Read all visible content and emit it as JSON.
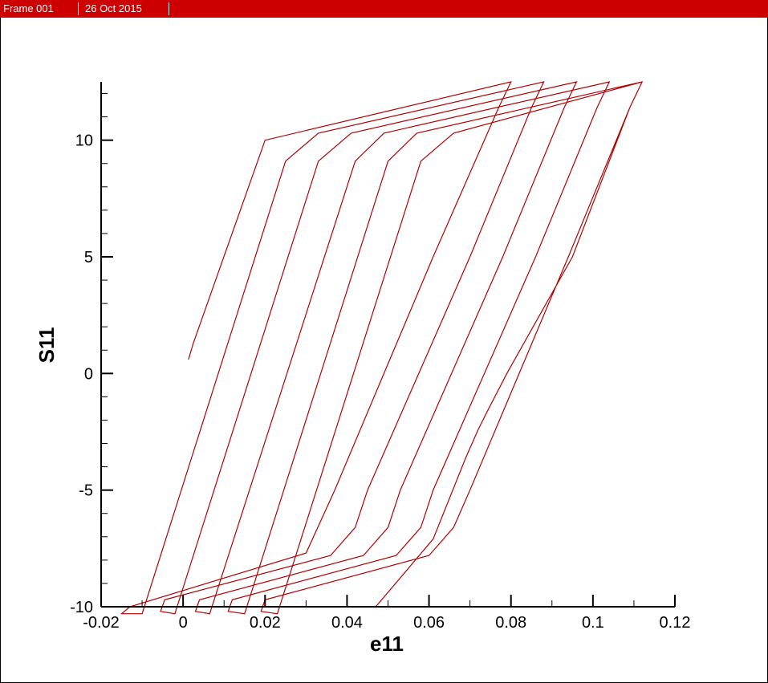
{
  "header": {
    "frame_label": "Frame 001",
    "date_label": "26 Oct 2015",
    "background_color": "#cc0000"
  },
  "chart_data": {
    "type": "line",
    "title": "",
    "xlabel": "e11",
    "ylabel": "S11",
    "xlim": [
      -0.02,
      0.12
    ],
    "ylim": [
      -10,
      12.5
    ],
    "xticks": [
      -0.02,
      0,
      0.02,
      0.04,
      0.06,
      0.08,
      0.1,
      0.12
    ],
    "xtick_labels": [
      "-0.02",
      "0",
      "0.02",
      "0.04",
      "0.06",
      "0.08",
      "0.1",
      "0.12"
    ],
    "yticks": [
      -10,
      -5,
      0,
      5,
      10
    ],
    "ytick_labels": [
      "-10",
      "-5",
      "0",
      "5",
      "10"
    ],
    "grid": false,
    "line_color": "#b00000",
    "series": [
      {
        "values": [
          [
            0.0013,
            0.6
          ],
          [
            0.0025,
            1.3
          ],
          [
            0.02,
            10.0
          ],
          [
            0.08,
            12.5
          ],
          [
            0.077,
            11.4
          ],
          [
            0.061,
            5.0
          ],
          [
            0.037,
            -5.0
          ],
          [
            0.03,
            -7.7
          ],
          [
            -0.013,
            -10.0
          ],
          [
            -0.015,
            -10.3
          ],
          [
            -0.01,
            -10.3
          ],
          [
            0.025,
            9.1
          ],
          [
            0.033,
            10.3
          ],
          [
            0.088,
            12.5
          ],
          [
            0.085,
            11.4
          ],
          [
            0.07,
            5.0
          ],
          [
            0.045,
            -5.0
          ],
          [
            0.042,
            -6.6
          ],
          [
            0.036,
            -7.8
          ],
          [
            -0.0045,
            -9.7
          ],
          [
            -0.0055,
            -10.2
          ],
          [
            -0.002,
            -10.3
          ],
          [
            0.033,
            9.1
          ],
          [
            0.041,
            10.3
          ],
          [
            0.096,
            12.5
          ],
          [
            0.093,
            11.4
          ],
          [
            0.078,
            5.0
          ],
          [
            0.053,
            -5.0
          ],
          [
            0.05,
            -6.6
          ],
          [
            0.044,
            -7.8
          ],
          [
            0.004,
            -9.7
          ],
          [
            0.003,
            -10.2
          ],
          [
            0.0065,
            -10.3
          ],
          [
            0.042,
            9.1
          ],
          [
            0.049,
            10.3
          ],
          [
            0.104,
            12.5
          ],
          [
            0.101,
            11.4
          ],
          [
            0.086,
            5.0
          ],
          [
            0.061,
            -5.0
          ],
          [
            0.058,
            -6.6
          ],
          [
            0.052,
            -7.8
          ],
          [
            0.012,
            -9.7
          ],
          [
            0.011,
            -10.2
          ],
          [
            0.015,
            -10.3
          ],
          [
            0.05,
            9.1
          ],
          [
            0.057,
            10.3
          ],
          [
            0.112,
            12.5
          ],
          [
            0.109,
            11.4
          ],
          [
            0.094,
            5.0
          ],
          [
            0.07,
            -5.0
          ],
          [
            0.066,
            -6.6
          ],
          [
            0.06,
            -7.8
          ],
          [
            0.02,
            -9.7
          ],
          [
            0.019,
            -10.2
          ],
          [
            0.023,
            -10.3
          ],
          [
            0.058,
            9.1
          ],
          [
            0.066,
            10.3
          ],
          [
            0.112,
            12.5
          ],
          [
            0.109,
            11.4
          ],
          [
            0.095,
            5.0
          ],
          [
            0.079,
            0.0
          ],
          [
            0.074,
            -1.7
          ],
          [
            0.072,
            -2.4
          ],
          [
            0.069,
            -3.6
          ],
          [
            0.061,
            -7.1
          ],
          [
            0.047,
            -10.0
          ]
        ]
      }
    ]
  }
}
